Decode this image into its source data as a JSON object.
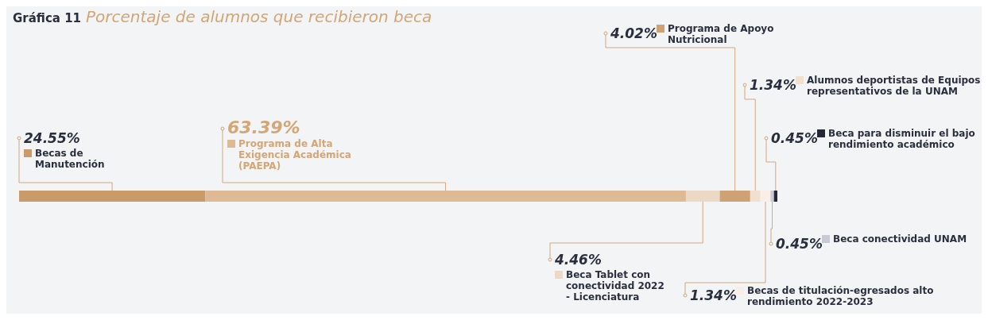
{
  "chart_data": {
    "type": "bar",
    "orientation": "horizontal",
    "stacked": true,
    "title": "Gráfica 11",
    "subtitle": "Porcentaje de alumnos que recibieron beca",
    "categories": [
      null
    ],
    "legend": "right",
    "series": [
      {
        "name": "Becas de Manutención",
        "color": "#c99a6a",
        "values": [
          24.55
        ],
        "value_labels": [
          "24.55%"
        ]
      },
      {
        "name": "Programa de Alta Exigencia Académica (PAEPA)",
        "color": "#ddb994",
        "values": [
          63.39
        ],
        "value_labels": [
          "63.39%"
        ]
      },
      {
        "name": "Beca Tablet con conectividad 2022 - Licenciatura",
        "color": "#ecd9c5",
        "values": [
          4.46
        ],
        "value_labels": [
          "4.46%"
        ]
      },
      {
        "name": "Programa de Apoyo Nutricional",
        "color": "#cfa276",
        "values": [
          4.02
        ],
        "value_labels": [
          "4.02%"
        ]
      },
      {
        "name": "Alumnos deportistas de Equipos representativos de la UNAM",
        "color": "#f1e0cd",
        "values": [
          1.34
        ],
        "value_labels": [
          "1.34%"
        ]
      },
      {
        "name": "Becas de titulación-egresados alto rendimiento 2022-2023",
        "color": "#faefe6",
        "values": [
          1.34
        ],
        "value_labels": [
          "1.34%"
        ]
      },
      {
        "name": "Beca conectividad UNAM",
        "color": "#c8cad6",
        "values": [
          0.45
        ],
        "value_labels": [
          "0.45%"
        ]
      },
      {
        "name": "Beca para disminuir el bajo rendimiento académico",
        "color": "#232736",
        "values": [
          0.45
        ],
        "value_labels": [
          "0.45%"
        ]
      }
    ]
  }
}
